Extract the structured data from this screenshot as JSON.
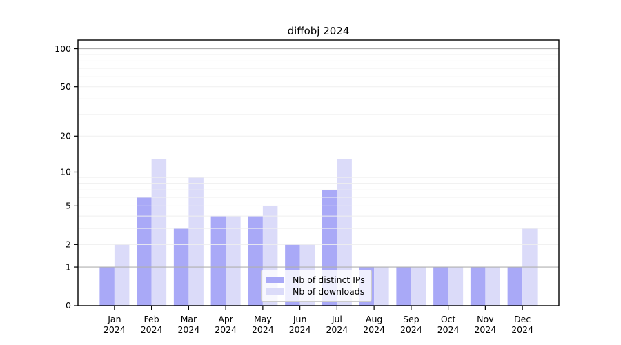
{
  "chart_data": {
    "type": "bar",
    "title": "diffobj 2024",
    "categories": [
      "Jan",
      "Feb",
      "Mar",
      "Apr",
      "May",
      "Jun",
      "Jul",
      "Aug",
      "Sep",
      "Oct",
      "Nov",
      "Dec"
    ],
    "year_label": "2024",
    "series": [
      {
        "name": "Nb of distinct IPs",
        "color": "#a9a9f7",
        "values": [
          1,
          6,
          3,
          4,
          4,
          2,
          7,
          1,
          1,
          1,
          1,
          1
        ]
      },
      {
        "name": "Nb of downloads",
        "color": "#dbdbf9",
        "values": [
          2,
          13,
          9,
          4,
          5,
          2,
          13,
          1,
          1,
          1,
          1,
          3
        ]
      }
    ],
    "yscale": "log1p",
    "ylim": [
      0,
      117
    ],
    "yticks": [
      0,
      1,
      2,
      5,
      10,
      20,
      50,
      100
    ],
    "major_gridlines": [
      1,
      10,
      100
    ],
    "minor_gridlines": [
      2,
      3,
      4,
      5,
      6,
      7,
      8,
      9,
      20,
      30,
      40,
      50,
      60,
      70,
      80,
      90
    ],
    "grid": "on",
    "legend_position": "lower-center-inside",
    "xlabel": "",
    "ylabel": ""
  },
  "colors": {
    "major_grid": "#b0b0b0",
    "minor_grid": "#efefef",
    "spine": "#000000",
    "tick_text": "#000000",
    "legend_border": "#cccccc"
  }
}
